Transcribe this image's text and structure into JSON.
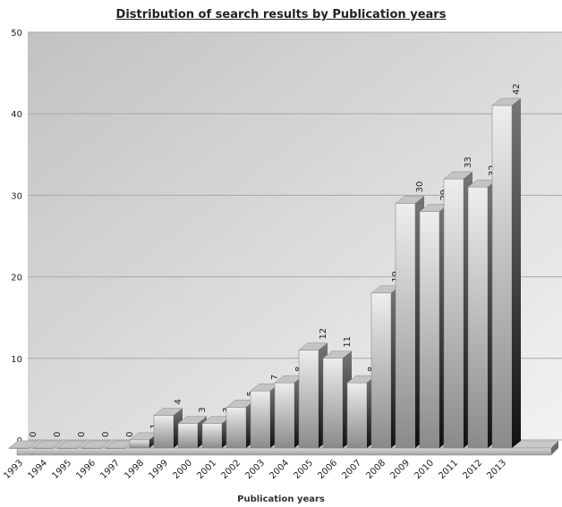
{
  "chart_data": {
    "type": "bar",
    "title": "Distribution of search results by Publication years",
    "xlabel": "Publication years",
    "ylabel": "",
    "ylim": [
      0,
      50
    ],
    "yticks": [
      0,
      10,
      20,
      30,
      40,
      50
    ],
    "grid": true,
    "legend": "none",
    "categories": [
      "1993",
      "1994",
      "1995",
      "1996",
      "1997",
      "1998",
      "1999",
      "2000",
      "2001",
      "2002",
      "2003",
      "2004",
      "2005",
      "2006",
      "2007",
      "2008",
      "2009",
      "2010",
      "2011",
      "2012",
      "2013"
    ],
    "values": [
      0,
      0,
      0,
      0,
      0,
      1,
      4,
      3,
      3,
      5,
      7,
      8,
      12,
      11,
      8,
      19,
      30,
      29,
      33,
      32,
      42
    ],
    "data_labels": [
      "0",
      "0",
      "0",
      "0",
      "0",
      "1",
      "4",
      "3",
      "3",
      "5",
      "7",
      "8",
      "12",
      "11",
      "8",
      "19",
      "30",
      "29",
      "33",
      "32",
      "42"
    ],
    "style": "3d-gradient-bars"
  }
}
